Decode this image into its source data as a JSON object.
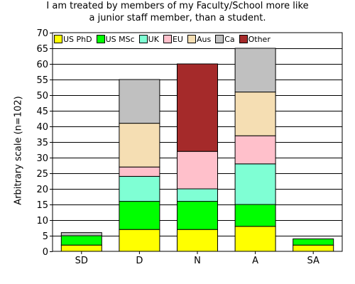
{
  "chart_data": {
    "type": "bar",
    "stacked": true,
    "title": "I am treated by members of my Faculty/School more like a junior staff member, than a student.",
    "title_lines": [
      "I am treated by members of my Faculty/School more like",
      "a junior staff member, than a student."
    ],
    "xlabel": "",
    "ylabel": "Arbitrary scale (n=102)",
    "ylim": [
      0,
      70
    ],
    "yticks": [
      0,
      5,
      10,
      15,
      20,
      25,
      30,
      35,
      40,
      45,
      50,
      55,
      60,
      65,
      70
    ],
    "grid": true,
    "legend_position": "top-left",
    "categories": [
      "SD",
      "D",
      "N",
      "A",
      "SA"
    ],
    "series": [
      {
        "name": "US PhD",
        "color": "#ffff00",
        "values": [
          2,
          7,
          7,
          8,
          2
        ]
      },
      {
        "name": "US MSc",
        "color": "#00ff00",
        "values": [
          3,
          9,
          9,
          7,
          2
        ]
      },
      {
        "name": "UK",
        "color": "#7fffd4",
        "values": [
          0,
          8,
          4,
          13,
          0
        ]
      },
      {
        "name": "EU",
        "color": "#ffc0cb",
        "values": [
          0,
          3,
          12,
          9,
          0
        ]
      },
      {
        "name": "Aus",
        "color": "#f5deb3",
        "values": [
          0,
          14,
          0,
          14,
          0
        ]
      },
      {
        "name": "Ca",
        "color": "#c0c0c0",
        "values": [
          1,
          14,
          0,
          14,
          0
        ]
      },
      {
        "name": "Other",
        "color": "#a52a2a",
        "values": [
          0,
          0,
          28,
          0,
          0
        ]
      }
    ]
  }
}
